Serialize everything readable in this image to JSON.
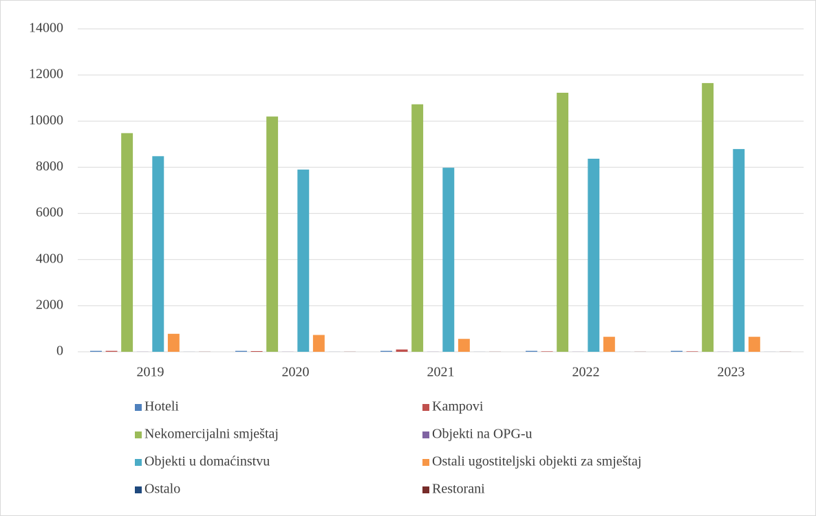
{
  "chart_data": {
    "type": "bar",
    "categories": [
      "2019",
      "2020",
      "2021",
      "2022",
      "2023"
    ],
    "series": [
      {
        "name": "Hoteli",
        "color": "#4f81bd",
        "values": [
          40,
          40,
          40,
          40,
          40
        ]
      },
      {
        "name": "Kampovi",
        "color": "#c0504d",
        "values": [
          40,
          30,
          100,
          20,
          20
        ]
      },
      {
        "name": "Nekomercijalni smještaj",
        "color": "#9bbb59",
        "values": [
          9480,
          10200,
          10730,
          11230,
          11650
        ]
      },
      {
        "name": "Objekti na OPG-u",
        "color": "#8064a2",
        "values": [
          5,
          5,
          5,
          5,
          5
        ]
      },
      {
        "name": "Objekti u domaćinstvu",
        "color": "#4bacc6",
        "values": [
          8480,
          7900,
          7980,
          8370,
          8790
        ]
      },
      {
        "name": "Ostali ugostiteljski objekti za smještaj",
        "color": "#f79646",
        "values": [
          780,
          730,
          560,
          650,
          650
        ]
      },
      {
        "name": "Ostalo",
        "color": "#1f497d",
        "values": [
          2,
          2,
          2,
          2,
          2
        ]
      },
      {
        "name": "Restorani",
        "color": "#772c2a",
        "values": [
          5,
          5,
          5,
          5,
          5
        ]
      }
    ],
    "ylim": [
      0,
      14000
    ],
    "yticks": [
      0,
      2000,
      4000,
      6000,
      8000,
      10000,
      12000,
      14000
    ],
    "grid": true,
    "legend": "bottom"
  }
}
